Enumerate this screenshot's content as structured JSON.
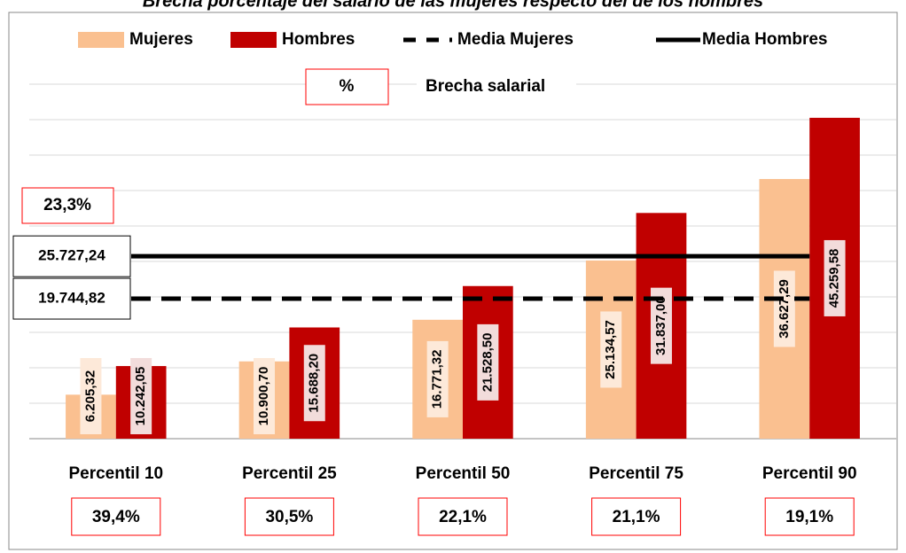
{
  "chart_data": {
    "type": "bar",
    "title": "Brecha porcentaje del salario de las mujeres respecto del de los hombres",
    "categories": [
      "Percentil 10",
      "Percentil 25",
      "Percentil 50",
      "Percentil 75",
      "Percentil 90"
    ],
    "series": [
      {
        "name": "Mujeres",
        "color": "#fac090",
        "label_background": "#fde9d9",
        "values": [
          6205.32,
          10900.7,
          16771.32,
          25134.57,
          36627.29
        ],
        "value_labels": [
          "6.205,32",
          "10.900,70",
          "16.771,32",
          "25.134,57",
          "36.627,29"
        ]
      },
      {
        "name": "Hombres",
        "color": "#c00000",
        "label_background": "#f2dcdb",
        "values": [
          10242.05,
          15688.2,
          21528.5,
          31837.0,
          45259.58
        ],
        "value_labels": [
          "10.242,05",
          "15.688,20",
          "21.528,50",
          "31.837,00",
          "45.259,58"
        ]
      }
    ],
    "mean_lines": [
      {
        "name": "Media Mujeres",
        "value": 19744.82,
        "label": "19.744,82",
        "style": "dashed",
        "color": "#000000"
      },
      {
        "name": "Media Hombres",
        "value": 25727.24,
        "label": "25.727,24",
        "style": "solid",
        "color": "#000000"
      }
    ],
    "gaps": [
      39.4,
      30.5,
      22.1,
      21.1,
      19.1
    ],
    "gap_labels": [
      "39,4%",
      "30,5%",
      "22,1%",
      "21,1%",
      "19,1%"
    ],
    "mean_gap": 23.3,
    "mean_gap_label": "23,3%",
    "gap_legend_symbol": "%",
    "gap_legend_label": "Brecha salarial",
    "gap_color": "#ff0000",
    "ylim": [
      0,
      50000
    ],
    "yticks": [
      0,
      5000,
      10000,
      15000,
      20000,
      25000,
      30000,
      35000,
      40000,
      45000,
      50000
    ],
    "grid": true
  }
}
